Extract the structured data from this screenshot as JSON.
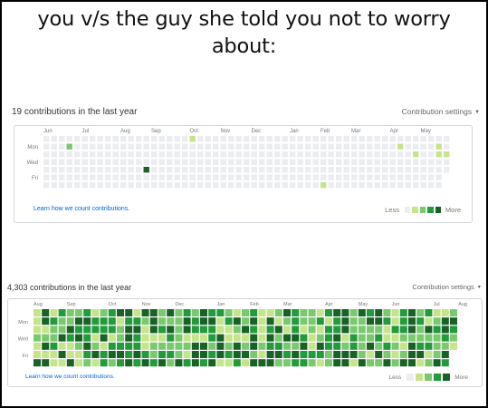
{
  "caption": {
    "line1": "you v/s the guy she told you not to worry",
    "line2": "about:"
  },
  "colors": {
    "empty": "#ebedf0",
    "levels": [
      "#ebedf0",
      "#c6e48b",
      "#7bc96f",
      "#239a3b",
      "#196127"
    ],
    "link": "#0366d6"
  },
  "panels": [
    {
      "title": "19 contributions in the last year",
      "settings_label": "Contribution settings",
      "months": [
        "Jun",
        "Jul",
        "Aug",
        "Sep",
        "Oct",
        "Nov",
        "Dec",
        "Jan",
        "Feb",
        "Mar",
        "Apr",
        "May"
      ],
      "days": [
        "Mon",
        "Wed",
        "Fri"
      ],
      "learn_label": "Learn how we count contributions.",
      "legend_less": "Less",
      "legend_more": "More"
    },
    {
      "title": "4,303 contributions in the last year",
      "settings_label": "Contribution settings",
      "months": [
        "Aug",
        "Sep",
        "Oct",
        "Nov",
        "Dec",
        "Jan",
        "Feb",
        "Mar",
        "Apr",
        "May",
        "Jun",
        "Jul",
        "Aug"
      ],
      "days": [
        "Mon",
        "Wed",
        "Fri"
      ],
      "learn_label": "Learn how we count contributions.",
      "legend_less": "Less",
      "legend_more": "More"
    }
  ]
}
